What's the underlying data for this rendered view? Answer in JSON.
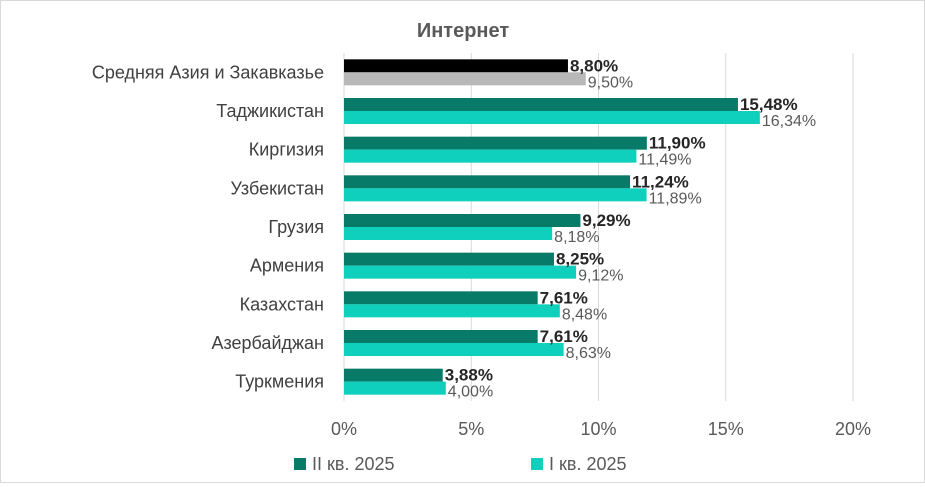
{
  "chart_data": {
    "type": "bar",
    "orientation": "horizontal",
    "title": "Интернет",
    "categories": [
      "Средняя Азия и Закавказье",
      "Таджикистан",
      "Киргизия",
      "Узбекистан",
      "Грузия",
      "Армения",
      "Казахстан",
      "Азербайджан",
      "Туркмения"
    ],
    "series": [
      {
        "name": "II кв. 2025",
        "values": [
          8.8,
          15.48,
          11.9,
          11.24,
          9.29,
          8.25,
          7.61,
          7.61,
          3.88
        ],
        "labels": [
          "8,80%",
          "15,48%",
          "11,90%",
          "11,24%",
          "9,29%",
          "8,25%",
          "7,61%",
          "7,61%",
          "3,88%"
        ],
        "color": "#087a68",
        "first_bar_color": "#000000"
      },
      {
        "name": "I кв. 2025",
        "values": [
          9.5,
          16.34,
          11.49,
          11.89,
          8.18,
          9.12,
          8.48,
          8.63,
          4.0
        ],
        "labels": [
          "9,50%",
          "16,34%",
          "11,49%",
          "11,89%",
          "8,18%",
          "9,12%",
          "8,48%",
          "8,63%",
          "4,00%"
        ],
        "color": "#0fcfbd",
        "first_bar_color": "#b8b8b8"
      }
    ],
    "xlim": [
      0,
      20
    ],
    "xticks": [
      0,
      5,
      10,
      15,
      20
    ],
    "xtick_labels": [
      "0%",
      "5%",
      "10%",
      "15%",
      "20%"
    ],
    "grid": true,
    "legend_position": "bottom"
  }
}
